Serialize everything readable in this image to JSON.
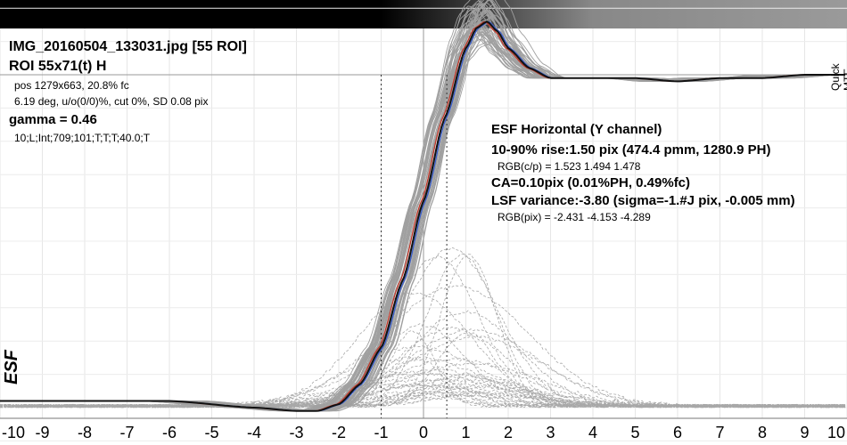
{
  "header": {
    "filename": "IMG_20160504_133031.jpg [55 ROI]",
    "roi": "ROI 55x71(t) H",
    "pos": "pos 1279x663, 20.8% fc",
    "deg": "6.19 deg, u/o(0/0)%, cut 0%, SD 0.08 pix",
    "gamma": "gamma = 0.46",
    "settings": "10;L;Int;709;101;T;T;T;40.0;T"
  },
  "results": {
    "title": "ESF Horizontal (Y channel)",
    "rise": "10-90% rise:1.50 pix (474.4 pmm, 1280.9 PH)",
    "rgb_cp": "RGB(c/p) = 1.523 1.494 1.478",
    "ca": "CA=0.10pix (0.01%PH, 0.49%fc)",
    "lsf": "LSF variance:-3.80 (sigma=-1.#J pix, -0.005 mm)",
    "rgb_pix": "RGB(pix) = -2.431 -4.153 -4.289"
  },
  "side_label": "Quick MTF",
  "colors": {
    "esf_curve": "#111111",
    "red_channel": "#c0392b",
    "blue_channel": "#3a5fcd",
    "roi_curves": "#a0a0a0",
    "lsf_curves": "#a8a8a8",
    "gradient_start": "#000000",
    "gradient_end": "#9a9a9a"
  },
  "chart_data": {
    "type": "line",
    "title": "",
    "xlabel": "",
    "ylabel": "ESF",
    "xlim": [
      -10,
      10
    ],
    "ylim": [
      0,
      1.2
    ],
    "grid": true,
    "xticks": [
      "-10",
      "-9",
      "-8",
      "-7",
      "-6",
      "-5",
      "-4",
      "-3",
      "-2",
      "-1",
      "0",
      "1",
      "2",
      "3",
      "4",
      "5",
      "6",
      "7",
      "8",
      "9",
      "10"
    ],
    "markers": {
      "rise_10pct_x": -1.0,
      "rise_90pct_x": 0.55,
      "level_1": 1.0
    },
    "series": [
      {
        "role": "mean ESF",
        "x": [
          -10,
          -8,
          -6,
          -4,
          -3,
          -2.5,
          -2,
          -1.5,
          -1,
          -0.5,
          0,
          0.5,
          1,
          1.25,
          1.5,
          1.75,
          2,
          2.5,
          3,
          4,
          5,
          6,
          7,
          8,
          9,
          10
        ],
        "y": [
          0.02,
          0.02,
          0.02,
          0.0,
          -0.01,
          -0.01,
          0.01,
          0.07,
          0.18,
          0.38,
          0.62,
          0.87,
          1.08,
          1.14,
          1.16,
          1.13,
          1.08,
          1.02,
          0.99,
          0.99,
          0.99,
          0.98,
          0.99,
          0.99,
          1.0,
          1.0
        ]
      }
    ]
  }
}
